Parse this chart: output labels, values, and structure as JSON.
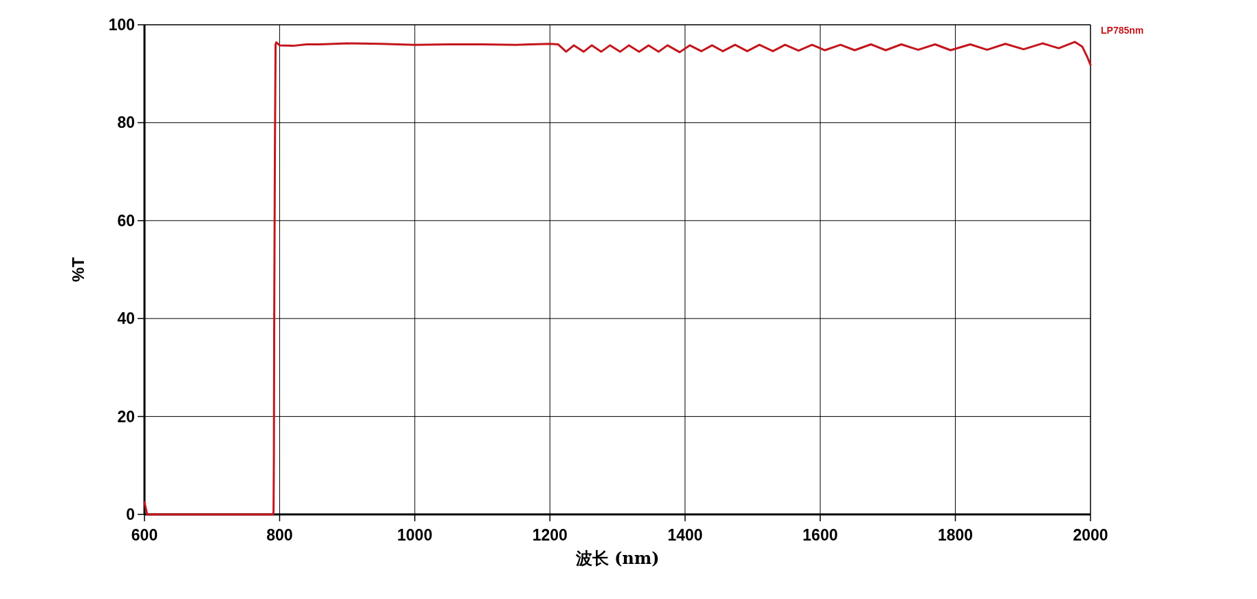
{
  "chart_data": {
    "type": "line",
    "xlabel": "波长 (nm)",
    "ylabel": "%T",
    "x": [
      600,
      604,
      650,
      700,
      750,
      790,
      791,
      791.5,
      792,
      793,
      794,
      795,
      800,
      820,
      840,
      860,
      880,
      900,
      950,
      1000,
      1050,
      1100,
      1150,
      1200,
      1212,
      1224,
      1235.5,
      1250,
      1262,
      1276,
      1289,
      1304,
      1317,
      1332,
      1346,
      1361,
      1374,
      1392,
      1407,
      1424,
      1440,
      1456,
      1474,
      1492,
      1510,
      1530,
      1548,
      1568,
      1588,
      1607,
      1630,
      1651,
      1675,
      1697,
      1720,
      1745,
      1770,
      1793,
      1822,
      1847,
      1874,
      1901,
      1929,
      1953,
      1977,
      1988,
      1995,
      2000
    ],
    "series": [
      {
        "name": "LP785nm",
        "color": "#c4161c",
        "values": [
          2.5,
          0,
          0,
          0,
          0,
          0,
          0.5,
          11,
          39,
          74,
          96,
          96.4,
          95.8,
          95.7,
          96.0,
          96.0,
          96.1,
          96.2,
          96.1,
          95.9,
          96.0,
          96.0,
          95.9,
          96.1,
          96.0,
          94.5,
          95.8,
          94.5,
          95.8,
          94.5,
          95.8,
          94.5,
          95.8,
          94.5,
          95.8,
          94.5,
          95.8,
          94.4,
          95.8,
          94.6,
          95.8,
          94.6,
          95.9,
          94.6,
          95.9,
          94.6,
          95.9,
          94.7,
          95.9,
          94.8,
          95.9,
          94.8,
          96.0,
          94.8,
          96.0,
          94.9,
          96.0,
          94.8,
          96.0,
          94.9,
          96.1,
          95.0,
          96.2,
          95.2,
          96.5,
          95.5,
          93.5,
          91.8
        ]
      }
    ],
    "xlim": [
      600,
      2000
    ],
    "xticks": [
      600,
      800,
      1000,
      1200,
      1400,
      1600,
      1800,
      2000
    ],
    "ylim": [
      0,
      100
    ],
    "yticks": [
      0,
      20,
      40,
      60,
      80,
      100
    ],
    "grid": true,
    "legend": "top right",
    "line_style": "solid",
    "marker": "none"
  }
}
